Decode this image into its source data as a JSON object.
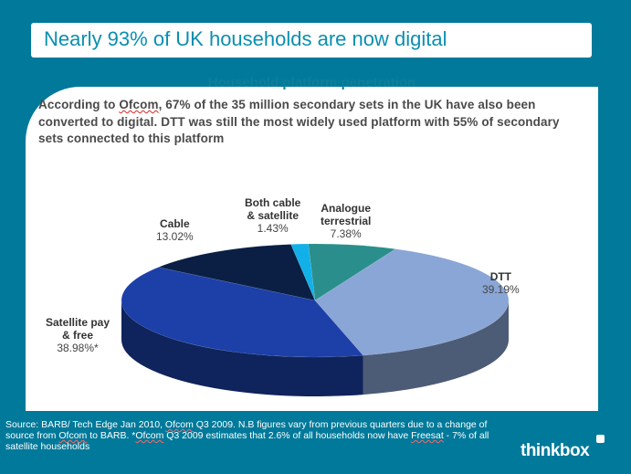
{
  "slide": {
    "title": "Nearly 93% of UK households are now digital",
    "intro_parts": [
      "According to ",
      "Ofcom",
      ", 67% of the 35 million secondary sets in the UK have also been converted to digital. DTT was still the most widely used platform with 55% of secondary sets connected to this platform"
    ],
    "source_parts": [
      "Source: BARB/ Tech Edge Jan 2010, ",
      "Ofcom",
      " Q3 2009. N.B figures vary from previous quarters due to a change of source from ",
      "Ofcom",
      " to BARB. *",
      "Ofcom",
      " Q3 2009 estimates that 2.6% of all households now have ",
      "Freesat",
      " - 7% of all satellite households"
    ],
    "logo_text": "thinkbox"
  },
  "chart_data": {
    "type": "pie",
    "title": "Household platform penetration",
    "slices": [
      {
        "name_lines": [
          "Analogue",
          "terrestrial"
        ],
        "value_label": "7.38%",
        "value": 7.38,
        "color": "#2a8f8c"
      },
      {
        "name_lines": [
          "DTT"
        ],
        "value_label": "39.19%",
        "value": 39.19,
        "color": "#8aa6d6"
      },
      {
        "name_lines": [
          "Satellite pay",
          "& free"
        ],
        "value_label": "38.98%*",
        "value": 38.98,
        "color": "#1c3fa8"
      },
      {
        "name_lines": [
          "Cable"
        ],
        "value_label": "13.02%",
        "value": 13.02,
        "color": "#0b1f45"
      },
      {
        "name_lines": [
          "Both cable",
          "& satellite"
        ],
        "value_label": "1.43%",
        "value": 1.43,
        "color": "#12b0e8"
      }
    ]
  }
}
